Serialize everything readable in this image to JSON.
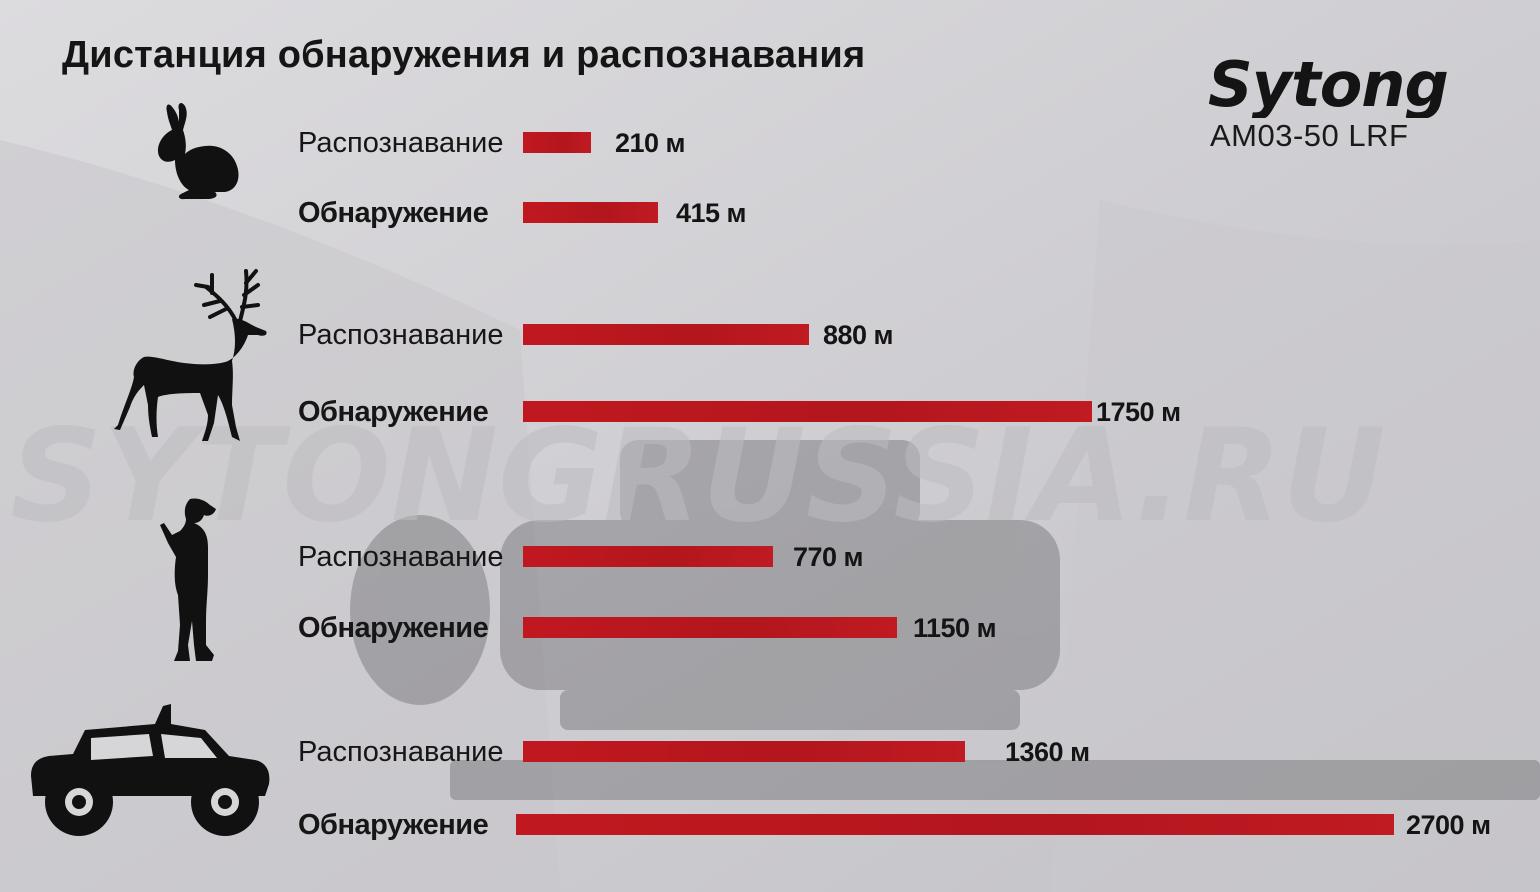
{
  "title": "Дистанция обнаружения и распознавания",
  "brand": {
    "logo_text": "Sytong",
    "model": "AM03-50 LRF"
  },
  "watermark": "SYTONGRUSSIA.RU",
  "chart_data": {
    "type": "bar",
    "orientation": "horizontal",
    "unit": "м",
    "groups": [
      {
        "icon": "rabbit-icon",
        "rows": [
          {
            "label": "Распознавание",
            "value": 210,
            "value_label": "210 м"
          },
          {
            "label": "Обнаружение",
            "value": 415,
            "value_label": "415 м"
          }
        ]
      },
      {
        "icon": "deer-icon",
        "rows": [
          {
            "label": "Распознавание",
            "value": 880,
            "value_label": "880 м"
          },
          {
            "label": "Обнаружение",
            "value": 1750,
            "value_label": "1750 м"
          }
        ]
      },
      {
        "icon": "person-icon",
        "rows": [
          {
            "label": "Распознавание",
            "value": 770,
            "value_label": "770 м"
          },
          {
            "label": "Обнаружение",
            "value": 1150,
            "value_label": "1150 м"
          }
        ]
      },
      {
        "icon": "vehicle-icon",
        "rows": [
          {
            "label": "Распознавание",
            "value": 1360,
            "value_label": "1360 м"
          },
          {
            "label": "Обнаружение",
            "value": 2700,
            "value_label": "2700 м"
          }
        ]
      }
    ],
    "colors": {
      "bar": "#be1a21",
      "text": "#151515",
      "background": "#d6d5d8"
    }
  }
}
